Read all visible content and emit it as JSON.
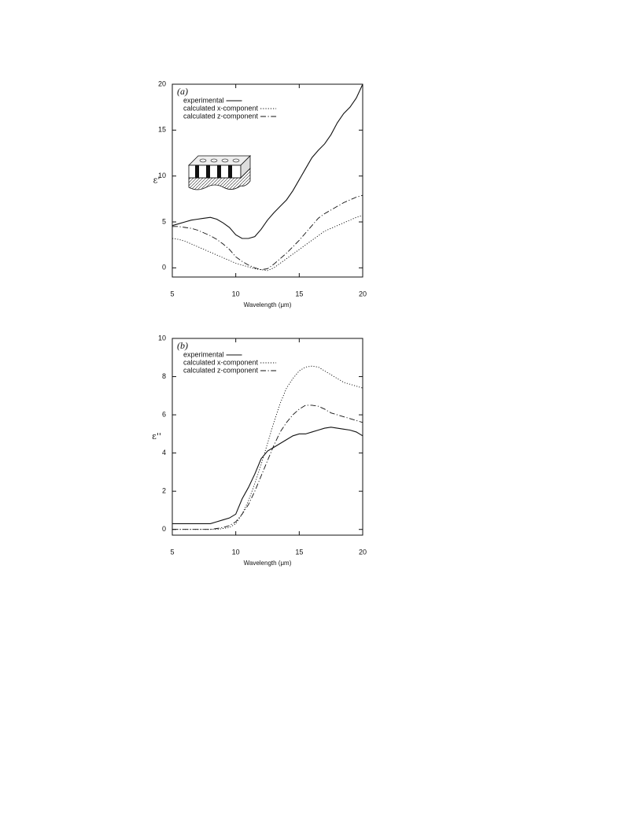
{
  "chart_data": [
    {
      "type": "line",
      "title": "(a)",
      "xlabel": "Wavelength (μm)",
      "ylabel": "ε'",
      "x": [
        5,
        5.5,
        6,
        6.5,
        7,
        7.5,
        8,
        8.5,
        9,
        9.5,
        10,
        10.5,
        11,
        11.5,
        12,
        12.5,
        13,
        13.5,
        14,
        14.5,
        15,
        15.5,
        16,
        16.5,
        17,
        17.5,
        18,
        18.5,
        19,
        19.5,
        20
      ],
      "series": [
        {
          "name": "experimental",
          "color": "#111111",
          "dash": "solid",
          "values": [
            4.6,
            4.8,
            5.0,
            5.2,
            5.3,
            5.4,
            5.5,
            5.3,
            4.9,
            4.4,
            3.6,
            3.2,
            3.2,
            3.4,
            4.2,
            5.2,
            6.0,
            6.7,
            7.4,
            8.4,
            9.6,
            10.8,
            12.0,
            12.8,
            13.5,
            14.5,
            15.8,
            16.8,
            17.5,
            18.5,
            20
          ]
        },
        {
          "name": "calculated x-component",
          "color": "#111111",
          "dash": "dotted",
          "values": [
            3.2,
            3.1,
            2.9,
            2.6,
            2.3,
            2.0,
            1.7,
            1.4,
            1.1,
            0.8,
            0.5,
            0.3,
            0.1,
            -0.1,
            -0.2,
            -0.3,
            0.0,
            0.5,
            1.0,
            1.5,
            2.0,
            2.5,
            3.0,
            3.5,
            4.0,
            4.3,
            4.6,
            4.9,
            5.2,
            5.5,
            5.7
          ]
        },
        {
          "name": "calculated z-component",
          "color": "#111111",
          "dash": "dashdot",
          "values": [
            4.5,
            4.5,
            4.4,
            4.3,
            4.1,
            3.8,
            3.5,
            3.1,
            2.6,
            2.0,
            1.2,
            0.7,
            0.3,
            0.0,
            -0.2,
            -0.1,
            0.4,
            1.0,
            1.6,
            2.3,
            3.0,
            3.8,
            4.6,
            5.4,
            5.9,
            6.3,
            6.7,
            7.1,
            7.4,
            7.7,
            7.9
          ]
        }
      ],
      "xlim": [
        5,
        20
      ],
      "ylim": [
        -1,
        20
      ],
      "xticks": [
        5,
        10,
        15,
        20
      ],
      "yticks": [
        0,
        5,
        10,
        15,
        20
      ]
    },
    {
      "type": "line",
      "title": "(b)",
      "xlabel": "Wavelength (μm)",
      "ylabel": "ε''",
      "x": [
        5,
        5.5,
        6,
        6.5,
        7,
        7.5,
        8,
        8.5,
        9,
        9.5,
        10,
        10.5,
        11,
        11.5,
        12,
        12.5,
        13,
        13.5,
        14,
        14.5,
        15,
        15.5,
        16,
        16.5,
        17,
        17.5,
        18,
        18.5,
        19,
        19.5,
        20
      ],
      "series": [
        {
          "name": "experimental",
          "color": "#111111",
          "dash": "solid",
          "values": [
            0.3,
            0.3,
            0.3,
            0.3,
            0.3,
            0.3,
            0.3,
            0.4,
            0.5,
            0.6,
            0.8,
            1.6,
            2.2,
            2.9,
            3.7,
            4.1,
            4.3,
            4.5,
            4.7,
            4.9,
            5.0,
            5.0,
            5.1,
            5.2,
            5.3,
            5.35,
            5.3,
            5.25,
            5.2,
            5.1,
            4.9
          ]
        },
        {
          "name": "calculated x-component",
          "color": "#111111",
          "dash": "dotted",
          "values": [
            0,
            0,
            0,
            0,
            0,
            0,
            0,
            0,
            0.05,
            0.1,
            0.3,
            0.8,
            1.5,
            2.4,
            3.4,
            4.5,
            5.6,
            6.6,
            7.4,
            7.9,
            8.3,
            8.5,
            8.55,
            8.5,
            8.3,
            8.1,
            7.9,
            7.7,
            7.6,
            7.5,
            7.4
          ]
        },
        {
          "name": "calculated z-component",
          "color": "#111111",
          "dash": "dashdot",
          "values": [
            0,
            0,
            0,
            0,
            0,
            0,
            0,
            0.05,
            0.1,
            0.2,
            0.4,
            0.8,
            1.3,
            2.0,
            2.8,
            3.6,
            4.4,
            5.1,
            5.6,
            6.0,
            6.3,
            6.5,
            6.5,
            6.45,
            6.3,
            6.1,
            6.0,
            5.9,
            5.8,
            5.7,
            5.6
          ]
        }
      ],
      "xlim": [
        5,
        20
      ],
      "ylim": [
        -0.3,
        10
      ],
      "xticks": [
        5,
        10,
        15,
        20
      ],
      "yticks": [
        0,
        2,
        4,
        6,
        8,
        10
      ]
    }
  ]
}
